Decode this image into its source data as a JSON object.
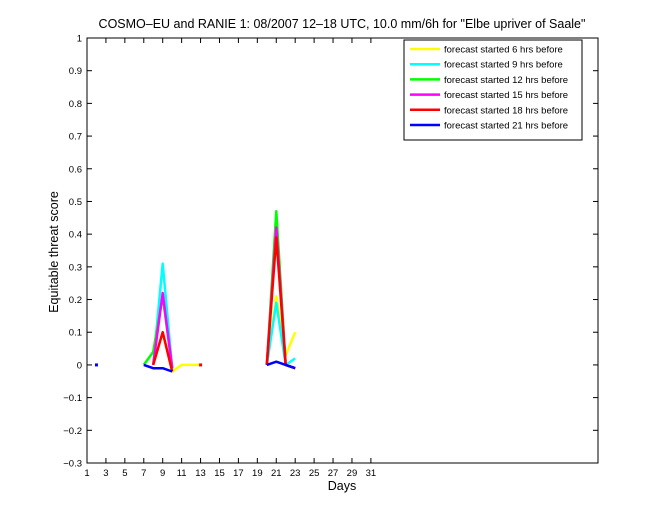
{
  "chart_data": {
    "type": "line",
    "title": "COSMO–EU and RANIE 1: 08/2007 12–18 UTC, 10.0 mm/6h for \"Elbe upriver of Saale\"",
    "xlabel": "Days",
    "ylabel": "Equitable threat score",
    "xlim": [
      1,
      55
    ],
    "ylim": [
      -0.3,
      1
    ],
    "x_ticks": [
      1,
      3,
      5,
      7,
      9,
      11,
      13,
      15,
      17,
      19,
      21,
      23,
      25,
      27,
      29,
      31
    ],
    "x_tick_labels": [
      "1",
      "3",
      "5",
      "7",
      "9",
      "11",
      "13",
      "15",
      "17",
      "19",
      "21",
      "23",
      "25",
      "27",
      "29",
      "31"
    ],
    "y_ticks": [
      -0.3,
      -0.2,
      -0.1,
      0,
      0.1,
      0.2,
      0.3,
      0.4,
      0.5,
      0.6,
      0.7,
      0.8,
      0.9,
      1
    ],
    "y_tick_labels": [
      "−0.3",
      "−0.2",
      "−0.1",
      "0",
      "0.1",
      "0.2",
      "0.3",
      "0.4",
      "0.5",
      "0.6",
      "0.7",
      "0.8",
      "0.9",
      "1"
    ],
    "grid": false,
    "legend_position": "top-right",
    "series": [
      {
        "name": "forecast started 6 hrs before",
        "color": "#ffff00",
        "segments": [
          [
            [
              8,
              0.0
            ],
            [
              9,
              0.1
            ],
            [
              10,
              -0.02
            ],
            [
              11,
              0.0
            ],
            [
              13,
              0.0
            ]
          ],
          [
            [
              20,
              0.0
            ],
            [
              21,
              0.21
            ],
            [
              22,
              0.03
            ],
            [
              23,
              0.1
            ]
          ]
        ]
      },
      {
        "name": "forecast started 9 hrs before",
        "color": "#00ffff",
        "segments": [
          [
            [
              8,
              0.0
            ],
            [
              9,
              0.31
            ],
            [
              10,
              -0.01
            ]
          ],
          [
            [
              20,
              0.0
            ],
            [
              21,
              0.19
            ],
            [
              22,
              0.0
            ],
            [
              23,
              0.02
            ]
          ]
        ]
      },
      {
        "name": "forecast started 12 hrs before",
        "color": "#00ff00",
        "segments": [
          [
            [
              7,
              0.0
            ],
            [
              8,
              0.04
            ],
            [
              9,
              0.21
            ],
            [
              10,
              -0.01
            ]
          ],
          [
            [
              20,
              0.0
            ],
            [
              21,
              0.47
            ],
            [
              22,
              0.0
            ],
            [
              23,
              -0.01
            ]
          ]
        ]
      },
      {
        "name": "forecast started 15 hrs before",
        "color": "#ff00ff",
        "segments": [
          [
            [
              8,
              0.0
            ],
            [
              9,
              0.22
            ],
            [
              10,
              -0.01
            ]
          ],
          [
            [
              20,
              0.0
            ],
            [
              21,
              0.42
            ],
            [
              22,
              0.0
            ],
            [
              23,
              -0.01
            ]
          ]
        ]
      },
      {
        "name": "forecast started 18 hrs before",
        "color": "#ff0000",
        "segments": [
          [
            [
              8,
              0.0
            ],
            [
              9,
              0.1
            ],
            [
              10,
              -0.02
            ]
          ],
          [
            [
              20,
              0.0
            ],
            [
              21,
              0.39
            ],
            [
              22,
              0.0
            ],
            [
              23,
              -0.01
            ]
          ]
        ]
      },
      {
        "name": "forecast started 21 hrs before",
        "color": "#0000ff",
        "segments": [
          [
            [
              7,
              0.0
            ],
            [
              8,
              -0.01
            ],
            [
              9,
              -0.01
            ],
            [
              10,
              -0.02
            ]
          ],
          [
            [
              20,
              0.0
            ],
            [
              21,
              0.01
            ],
            [
              22,
              0.0
            ],
            [
              23,
              -0.01
            ]
          ]
        ]
      }
    ],
    "markers": [
      {
        "x": 2,
        "y": 0.0,
        "color": "#0000ff"
      },
      {
        "x": 13,
        "y": 0.0,
        "color": "#ff0000"
      }
    ]
  }
}
